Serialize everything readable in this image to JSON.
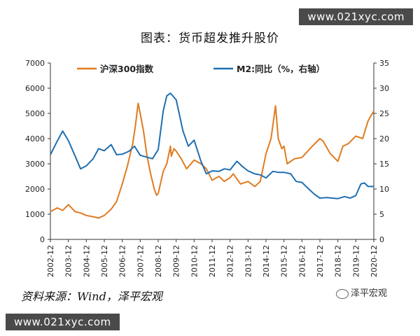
{
  "watermark": {
    "top": "www.021xyc.com",
    "bottom": "www.021xyc.com"
  },
  "source": "资料来源：Wind，泽平宏观",
  "brand": "泽平宏观",
  "colors": {
    "csi300": "#e07b20",
    "m2": "#1f6fb0"
  },
  "chart_data": {
    "type": "line",
    "title": "图表：货币超发推升股价",
    "legend": {
      "placement": "top",
      "entries": [
        "沪深300指数",
        "M2:同比（%，右轴）"
      ]
    },
    "x_ticks": [
      "2002-12",
      "2003-12",
      "2004-12",
      "2005-12",
      "2006-12",
      "2007-12",
      "2008-12",
      "2009-12",
      "2010-12",
      "2011-12",
      "2012-12",
      "2013-12",
      "2014-12",
      "2015-12",
      "2016-12",
      "2017-12",
      "2018-12",
      "2019-12",
      "2020-12"
    ],
    "y_left": {
      "min": 0,
      "max": 7000,
      "ticks": [
        0,
        1000,
        2000,
        3000,
        4000,
        5000,
        6000,
        7000
      ]
    },
    "y_right": {
      "min": 0,
      "max": 35,
      "ticks": [
        0,
        5,
        10,
        15,
        20,
        25,
        30,
        35
      ]
    },
    "grid": false,
    "series": [
      {
        "name": "沪深300指数",
        "axis": "left",
        "x": [
          2002.92,
          2003.3,
          2003.6,
          2003.92,
          2004.3,
          2004.6,
          2004.92,
          2005.3,
          2005.6,
          2005.92,
          2006.3,
          2006.6,
          2006.92,
          2007.2,
          2007.5,
          2007.65,
          2007.8,
          2007.92,
          2008.1,
          2008.3,
          2008.5,
          2008.7,
          2008.83,
          2008.92,
          2009.2,
          2009.4,
          2009.6,
          2009.65,
          2009.8,
          2009.92,
          2010.2,
          2010.5,
          2010.92,
          2011.3,
          2011.6,
          2011.92,
          2012.3,
          2012.6,
          2012.92,
          2013.1,
          2013.5,
          2013.92,
          2014.3,
          2014.6,
          2014.92,
          2015.2,
          2015.45,
          2015.6,
          2015.8,
          2015.92,
          2016.1,
          2016.5,
          2016.92,
          2017.5,
          2017.92,
          2018.1,
          2018.5,
          2018.92,
          2019.2,
          2019.5,
          2019.92,
          2020.3,
          2020.6,
          2020.92
        ],
        "values": [
          1100,
          1250,
          1150,
          1380,
          1100,
          1050,
          950,
          900,
          850,
          950,
          1200,
          1500,
          2200,
          2900,
          3800,
          4500,
          5400,
          5000,
          4300,
          3300,
          2600,
          2000,
          1750,
          1820,
          2700,
          3000,
          3700,
          3300,
          3600,
          3500,
          3200,
          2800,
          3150,
          3000,
          2800,
          2350,
          2500,
          2300,
          2450,
          2600,
          2200,
          2300,
          2100,
          2300,
          3400,
          4000,
          5300,
          4000,
          3600,
          3700,
          3000,
          3200,
          3250,
          3700,
          4000,
          3900,
          3400,
          3100,
          3700,
          3800,
          4100,
          4000,
          4700,
          5100
        ]
      },
      {
        "name": "M2:同比（%，右轴）",
        "axis": "right",
        "x": [
          2002.92,
          2003.3,
          2003.6,
          2003.92,
          2004.3,
          2004.6,
          2004.92,
          2005.3,
          2005.6,
          2005.92,
          2006.3,
          2006.6,
          2006.92,
          2007.3,
          2007.6,
          2007.92,
          2008.3,
          2008.6,
          2008.92,
          2009.2,
          2009.4,
          2009.6,
          2009.92,
          2010.3,
          2010.6,
          2010.92,
          2011.3,
          2011.6,
          2011.92,
          2012.3,
          2012.6,
          2012.92,
          2013.3,
          2013.6,
          2013.92,
          2014.3,
          2014.6,
          2014.92,
          2015.3,
          2015.6,
          2015.92,
          2016.3,
          2016.6,
          2016.92,
          2017.3,
          2017.6,
          2017.92,
          2018.3,
          2018.6,
          2018.92,
          2019.3,
          2019.6,
          2019.92,
          2020.2,
          2020.4,
          2020.6,
          2020.92
        ],
        "values": [
          16.8,
          19.5,
          21.5,
          19.6,
          16.5,
          14.0,
          14.6,
          16.0,
          18.0,
          17.6,
          18.8,
          16.8,
          16.9,
          17.5,
          18.5,
          16.7,
          16.3,
          16.0,
          17.8,
          25.5,
          28.5,
          29.0,
          27.7,
          21.5,
          18.5,
          19.7,
          15.5,
          13.0,
          13.6,
          13.5,
          14.0,
          13.8,
          15.5,
          14.5,
          13.6,
          13.0,
          12.8,
          12.2,
          13.5,
          13.3,
          13.3,
          13.0,
          11.5,
          11.3,
          10.0,
          9.0,
          8.2,
          8.3,
          8.2,
          8.1,
          8.5,
          8.2,
          8.7,
          11.0,
          11.2,
          10.5,
          10.5
        ]
      }
    ]
  }
}
